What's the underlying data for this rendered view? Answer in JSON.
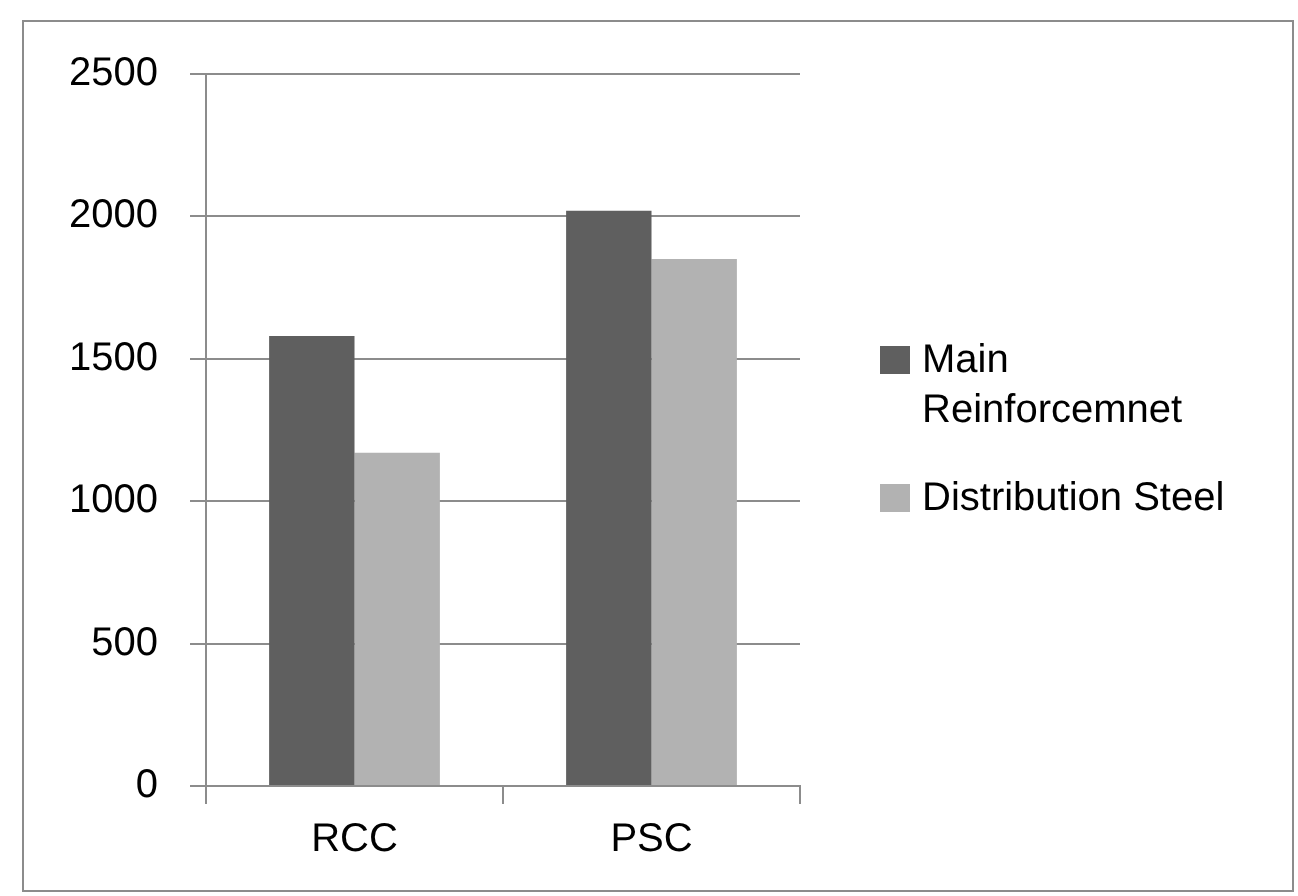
{
  "chart_data": {
    "type": "bar",
    "categories": [
      "RCC",
      "PSC"
    ],
    "series": [
      {
        "name": "Main Reinforcemnet",
        "color": "#5f5f5f",
        "values": [
          1580,
          2020
        ]
      },
      {
        "name": "Distribution Steel",
        "color": "#b2b2b2",
        "values": [
          1170,
          1850
        ]
      }
    ],
    "ylim": [
      0,
      2500
    ],
    "yticks": [
      0,
      500,
      1000,
      1500,
      2000,
      2500
    ],
    "grid": "y",
    "legend": "right"
  }
}
